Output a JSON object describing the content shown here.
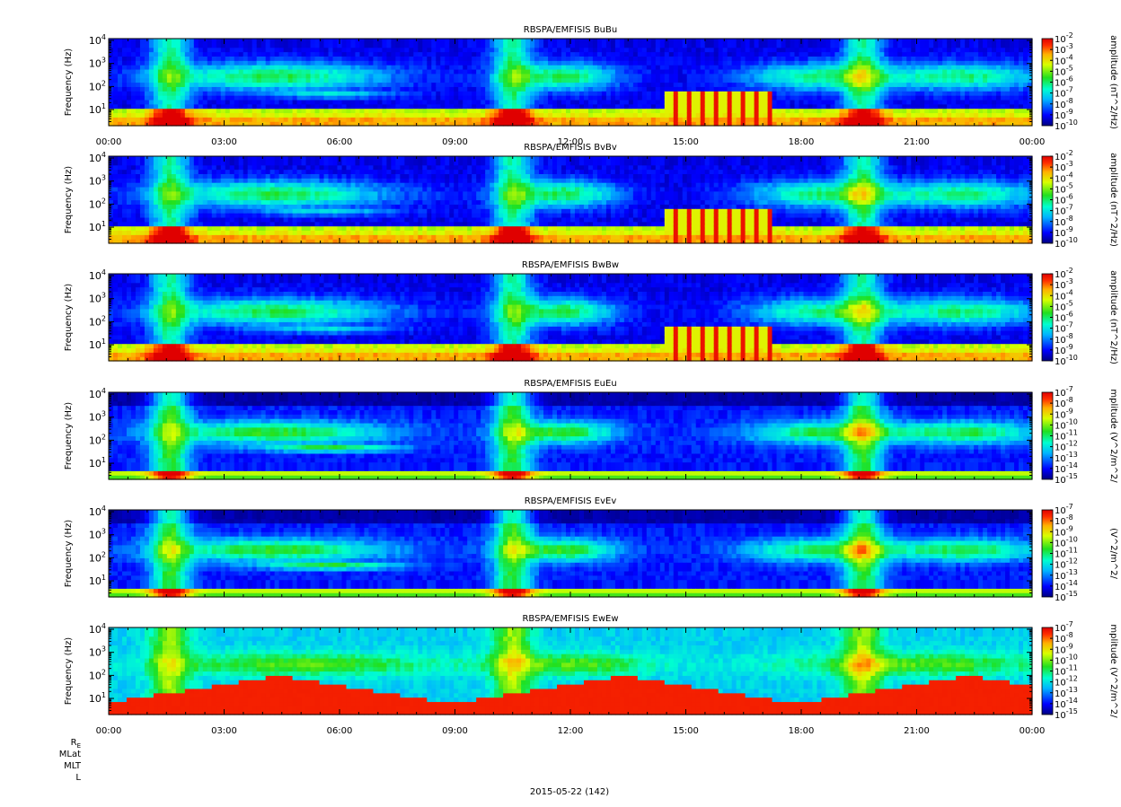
{
  "figure": {
    "date_label": "2015-05-22 (142)",
    "ephemeris_labels": [
      "R",
      "MLat",
      "MLT",
      "L"
    ],
    "ephemeris_subscript": "E"
  },
  "chart_data": [
    {
      "type": "heatmap",
      "title": "RBSPA/EMFISIS  BuBu",
      "ylabel": "Frequency (Hz)",
      "yscale": "log",
      "ylim": [
        2,
        12000
      ],
      "y_ticks": [
        "10^1",
        "10^2",
        "10^3",
        "10^4"
      ],
      "x_ticks": [
        "00:00",
        "03:00",
        "06:00",
        "09:00",
        "12:00",
        "15:00",
        "18:00",
        "21:00",
        "00:00"
      ],
      "xlim_hours": [
        0,
        24
      ],
      "colorbar": {
        "label": "amplitude (nT^2/Hz)",
        "scale": "log",
        "range_exponents": [
          -10,
          -2
        ],
        "tick_exponents": [
          -2,
          -3,
          -4,
          -5,
          -6,
          -7,
          -8,
          -9,
          -10
        ]
      },
      "kind": "B"
    },
    {
      "type": "heatmap",
      "title": "RBSPA/EMFISIS  BvBv",
      "ylabel": "Frequency (Hz)",
      "yscale": "log",
      "ylim": [
        2,
        12000
      ],
      "y_ticks": [
        "10^1",
        "10^2",
        "10^3",
        "10^4"
      ],
      "x_ticks": [],
      "xlim_hours": [
        0,
        24
      ],
      "colorbar": {
        "label": "amplitude (nT^2/Hz)",
        "scale": "log",
        "range_exponents": [
          -10,
          -2
        ],
        "tick_exponents": [
          -2,
          -3,
          -4,
          -5,
          -6,
          -7,
          -8,
          -9,
          -10
        ]
      },
      "kind": "B"
    },
    {
      "type": "heatmap",
      "title": "RBSPA/EMFISIS  BwBw",
      "ylabel": "Frequency (Hz)",
      "yscale": "log",
      "ylim": [
        2,
        12000
      ],
      "y_ticks": [
        "10^1",
        "10^2",
        "10^3",
        "10^4"
      ],
      "x_ticks": [],
      "xlim_hours": [
        0,
        24
      ],
      "colorbar": {
        "label": "amplitude (nT^2/Hz)",
        "scale": "log",
        "range_exponents": [
          -10,
          -2
        ],
        "tick_exponents": [
          -2,
          -3,
          -4,
          -5,
          -6,
          -7,
          -8,
          -9,
          -10
        ]
      },
      "kind": "B"
    },
    {
      "type": "heatmap",
      "title": "RBSPA/EMFISIS  EuEu",
      "ylabel": "Frequency (Hz)",
      "yscale": "log",
      "ylim": [
        2,
        12000
      ],
      "y_ticks": [
        "10^1",
        "10^2",
        "10^3",
        "10^4"
      ],
      "x_ticks": [],
      "xlim_hours": [
        0,
        24
      ],
      "colorbar": {
        "label": "mplitude (V^2/m^2/",
        "scale": "log",
        "range_exponents": [
          -15,
          -7
        ],
        "tick_exponents": [
          -7,
          -8,
          -9,
          -10,
          -11,
          -12,
          -13,
          -14,
          -15
        ]
      },
      "kind": "E"
    },
    {
      "type": "heatmap",
      "title": "RBSPA/EMFISIS  EvEv",
      "ylabel": "Frequency (Hz)",
      "yscale": "log",
      "ylim": [
        2,
        12000
      ],
      "y_ticks": [
        "10^1",
        "10^2",
        "10^3",
        "10^4"
      ],
      "x_ticks": [],
      "xlim_hours": [
        0,
        24
      ],
      "colorbar": {
        "label": "(V^2/m^2/",
        "scale": "log",
        "range_exponents": [
          -15,
          -7
        ],
        "tick_exponents": [
          -7,
          -8,
          -9,
          -10,
          -11,
          -12,
          -13,
          -14,
          -15
        ]
      },
      "kind": "E"
    },
    {
      "type": "heatmap",
      "title": "RBSPA/EMFISIS  EwEw",
      "ylabel": "Frequency (Hz)",
      "yscale": "log",
      "ylim": [
        2,
        12000
      ],
      "y_ticks": [
        "10^1",
        "10^2",
        "10^3",
        "10^4"
      ],
      "x_ticks": [
        "00:00",
        "03:00",
        "06:00",
        "09:00",
        "12:00",
        "15:00",
        "18:00",
        "21:00",
        "00:00"
      ],
      "xlim_hours": [
        0,
        24
      ],
      "colorbar": {
        "label": "mplitude (V^2/m^2/",
        "scale": "log",
        "range_exponents": [
          -15,
          -7
        ],
        "tick_exponents": [
          -7,
          -8,
          -9,
          -10,
          -11,
          -12,
          -13,
          -14,
          -15
        ]
      },
      "kind": "Ew"
    }
  ]
}
